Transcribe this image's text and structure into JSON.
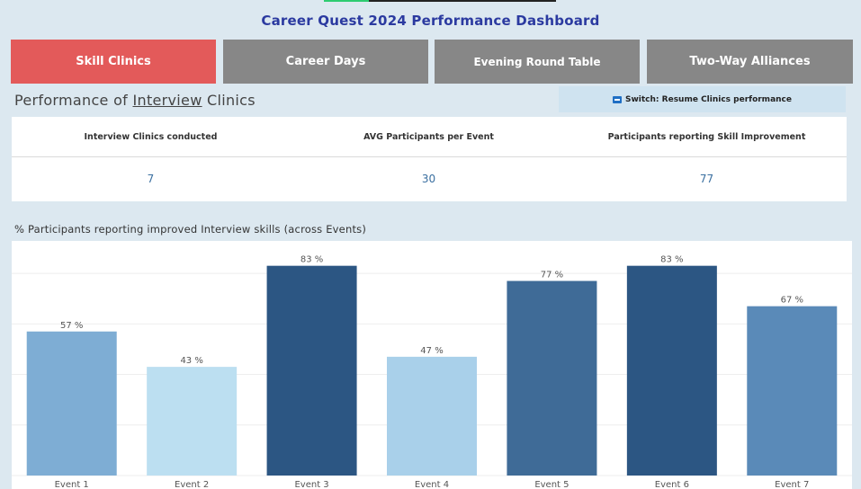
{
  "title": "Career Quest 2024 Performance Dashboard",
  "tabs": [
    {
      "label": "Skill Clinics",
      "active": true
    },
    {
      "label": "Career Days",
      "active": false
    },
    {
      "label": "Evening Round Table",
      "active": false
    },
    {
      "label": "Two-Way Alliances",
      "active": false
    }
  ],
  "section": {
    "prefix": "Performance of ",
    "highlight": "Interview",
    "suffix": " Clinics"
  },
  "switch": {
    "label": "Switch: Resume Clinics performance"
  },
  "kpis": [
    {
      "label": "Interview Clinics conducted",
      "value": "7"
    },
    {
      "label": "AVG Participants per Event",
      "value": "30"
    },
    {
      "label": "Participants reporting Skill Improvement",
      "value": "77"
    }
  ],
  "chart_title": "% Participants reporting improved Interview skills (across Events)",
  "colors": {
    "accent_tab": "#e35a5a",
    "inactive_tab": "#878787",
    "title": "#2b3aa0",
    "kpi_value": "#3a6fa0"
  },
  "chart_data": {
    "type": "bar",
    "title": "% Participants reporting improved Interview skills (across Events)",
    "categories": [
      "Event 1",
      "Event 2",
      "Event 3",
      "Event 4",
      "Event 5",
      "Event 6",
      "Event 7"
    ],
    "values": [
      57,
      43,
      83,
      47,
      77,
      83,
      67
    ],
    "labels": [
      "57 %",
      "43 %",
      "83 %",
      "47 %",
      "77 %",
      "83 %",
      "67 %"
    ],
    "bar_colors": [
      "#7eadd4",
      "#bcdff1",
      "#2c5683",
      "#a9d0ea",
      "#3f6b97",
      "#2c5683",
      "#5a8ab8"
    ],
    "xlabel": "",
    "ylabel": "",
    "ylim": [
      0,
      90
    ],
    "grid": true
  }
}
